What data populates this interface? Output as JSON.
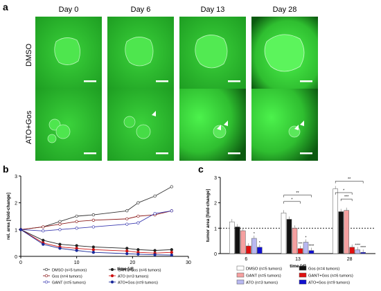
{
  "figure": {
    "panel_a_letter": "a",
    "panel_b_letter": "b",
    "panel_c_letter": "c",
    "days": [
      "Day 0",
      "Day 6",
      "Day 13",
      "Day 28"
    ],
    "rows": [
      "DMSO",
      "ATO+Gos"
    ],
    "colors": {
      "fluorescence": "#2cc82c",
      "dark_green": "#0c5a10",
      "bright_green": "#4cf24c"
    }
  },
  "chart_data": [
    {
      "type": "line",
      "panel": "b",
      "xlabel": "time [d]",
      "ylabel": "rel. area [fold-change]",
      "xlim": [
        0,
        30
      ],
      "ylim": [
        0,
        3
      ],
      "xticks": [
        0,
        10,
        20,
        30
      ],
      "yticks": [
        0,
        1,
        2,
        3
      ],
      "series": [
        {
          "name": "DMSO (n=5 tumors)",
          "color": "#333333",
          "marker": "open-circle",
          "x": [
            0,
            4,
            7,
            10,
            13,
            19,
            21,
            24,
            27
          ],
          "y": [
            1.0,
            1.1,
            1.3,
            1.5,
            1.55,
            1.7,
            2.0,
            2.25,
            2.6
          ]
        },
        {
          "name": "Gos (n=4 tumors)",
          "color": "#8b1a1a",
          "marker": "open-circle",
          "x": [
            0,
            4,
            7,
            10,
            13,
            19,
            21,
            24,
            27
          ],
          "y": [
            1.0,
            1.1,
            1.2,
            1.3,
            1.35,
            1.4,
            1.5,
            1.55,
            1.7
          ]
        },
        {
          "name": "GANT (n=5 tumors)",
          "color": "#3a3ab0",
          "marker": "open-circle",
          "x": [
            0,
            4,
            7,
            10,
            13,
            19,
            21,
            24,
            27
          ],
          "y": [
            1.0,
            0.95,
            1.0,
            1.05,
            1.1,
            1.2,
            1.25,
            1.6,
            1.7
          ]
        },
        {
          "name": "GANT+Gos (n=6 tumors)",
          "color": "#222222",
          "marker": "filled-circle",
          "x": [
            0,
            4,
            7,
            10,
            13,
            19,
            21,
            24,
            27
          ],
          "y": [
            1.0,
            0.6,
            0.45,
            0.4,
            0.35,
            0.3,
            0.25,
            0.22,
            0.25
          ]
        },
        {
          "name": "ATO (n=3 tumors)",
          "color": "#cc1111",
          "marker": "filled-circle",
          "x": [
            0,
            4,
            7,
            10,
            13,
            19,
            21,
            24,
            27
          ],
          "y": [
            1.0,
            0.5,
            0.35,
            0.3,
            0.25,
            0.2,
            0.15,
            0.12,
            0.15
          ]
        },
        {
          "name": "ATO+Gos (n=9 tumors)",
          "color": "#1a2a9a",
          "marker": "filled-circle",
          "x": [
            0,
            4,
            7,
            10,
            13,
            19,
            21,
            24,
            27
          ],
          "y": [
            1.0,
            0.45,
            0.3,
            0.22,
            0.15,
            0.1,
            0.08,
            0.06,
            0.05
          ]
        }
      ]
    },
    {
      "type": "bar",
      "panel": "c",
      "xlabel": "time [d]",
      "ylabel": "tumor area [fold-change]",
      "ylim": [
        0,
        3
      ],
      "yticks": [
        0,
        1,
        2,
        3
      ],
      "categories": [
        "6",
        "13",
        "28"
      ],
      "reference_line": 1,
      "series": [
        {
          "name": "DMSO (n=5 tumors)",
          "color": "#ffffff",
          "values": [
            1.25,
            1.6,
            2.55
          ]
        },
        {
          "name": "Gos (n=4 tumors)",
          "color": "#111111",
          "values": [
            1.05,
            1.35,
            1.65
          ]
        },
        {
          "name": "GANT (n=5 tumors)",
          "color": "#f5a0a0",
          "values": [
            0.9,
            1.0,
            1.7
          ]
        },
        {
          "name": "GANT+Gos (n=6 tumors)",
          "color": "#e01010",
          "values": [
            0.3,
            0.2,
            0.25
          ]
        },
        {
          "name": "ATO (n=3 tumors)",
          "color": "#b8b8f0",
          "values": [
            0.6,
            0.45,
            0.15
          ]
        },
        {
          "name": "ATO+Gos (n=9 tumors)",
          "color": "#1010d0",
          "values": [
            0.25,
            0.12,
            0.05
          ]
        }
      ],
      "annotations": {
        "sig_6": [
          "*",
          "*"
        ],
        "sig_13": [
          "***",
          "*",
          "****"
        ],
        "sig_28": [
          "****",
          "****"
        ],
        "brackets": [
          "*",
          "**",
          "**",
          "*",
          "***"
        ]
      }
    }
  ]
}
